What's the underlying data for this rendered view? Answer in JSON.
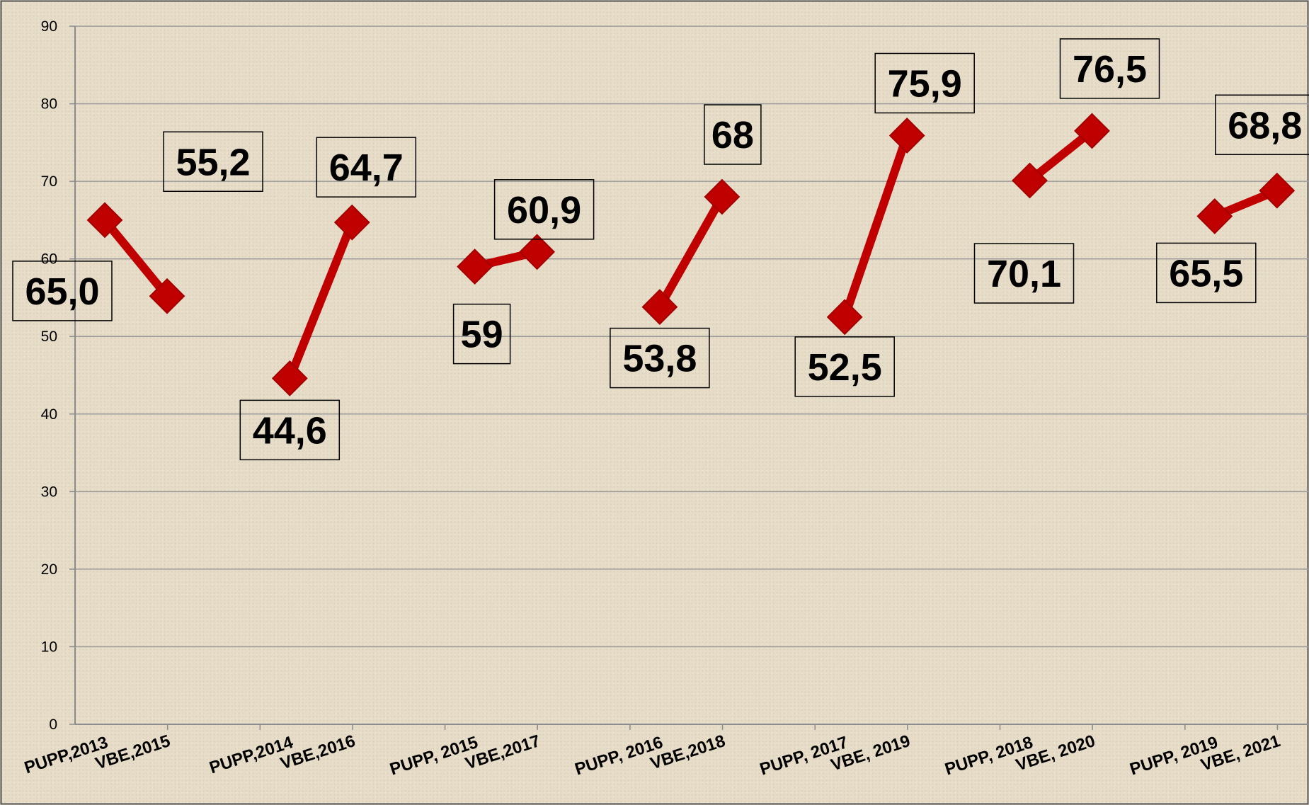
{
  "chart_data": {
    "type": "line",
    "title": "",
    "xlabel": "",
    "ylabel": "",
    "ylim": [
      0,
      90
    ],
    "yticks": [
      "0",
      "10",
      "20",
      "30",
      "40",
      "50",
      "60",
      "70",
      "80",
      "90"
    ],
    "grid": true,
    "legend": "none",
    "colors": {
      "line": "#c00000",
      "grid": "#9a9a9a",
      "axis": "#8c8c8c",
      "background": "#e6dcc7"
    },
    "categories": [
      "PUPP,2013",
      "VBE,2015",
      "PUPP,2014",
      "VBE,2016",
      "PUPP, 2015",
      "VBE,2017",
      "PUPP, 2016",
      "VBE,2018",
      "PUPP, 2017",
      "VBE, 2019",
      "PUPP, 2018",
      "VBE, 2020",
      "PUPP, 2019",
      "VBE, 2021"
    ],
    "segments": [
      {
        "points": [
          {
            "x": "PUPP,2013",
            "y": 65.0,
            "label": "65,0"
          },
          {
            "x": "VBE,2015",
            "y": 55.2,
            "label": "55,2"
          }
        ]
      },
      {
        "points": [
          {
            "x": "PUPP,2014",
            "y": 44.6,
            "label": "44,6"
          },
          {
            "x": "VBE,2016",
            "y": 64.7,
            "label": "64,7"
          }
        ]
      },
      {
        "points": [
          {
            "x": "PUPP, 2015",
            "y": 59,
            "label": "59"
          },
          {
            "x": "VBE,2017",
            "y": 60.9,
            "label": "60,9"
          }
        ]
      },
      {
        "points": [
          {
            "x": "PUPP, 2016",
            "y": 53.8,
            "label": "53,8"
          },
          {
            "x": "VBE,2018",
            "y": 68,
            "label": "68"
          }
        ]
      },
      {
        "points": [
          {
            "x": "PUPP, 2017",
            "y": 52.5,
            "label": "52,5"
          },
          {
            "x": "VBE, 2019",
            "y": 75.9,
            "label": "75,9"
          }
        ]
      },
      {
        "points": [
          {
            "x": "PUPP, 2018",
            "y": 70.1,
            "label": "70,1"
          },
          {
            "x": "VBE, 2020",
            "y": 76.5,
            "label": "76,5"
          }
        ]
      },
      {
        "points": [
          {
            "x": "PUPP, 2019",
            "y": 65.5,
            "label": "65,5"
          },
          {
            "x": "VBE, 2021",
            "y": 68.8,
            "label": "68,8"
          }
        ]
      }
    ]
  }
}
